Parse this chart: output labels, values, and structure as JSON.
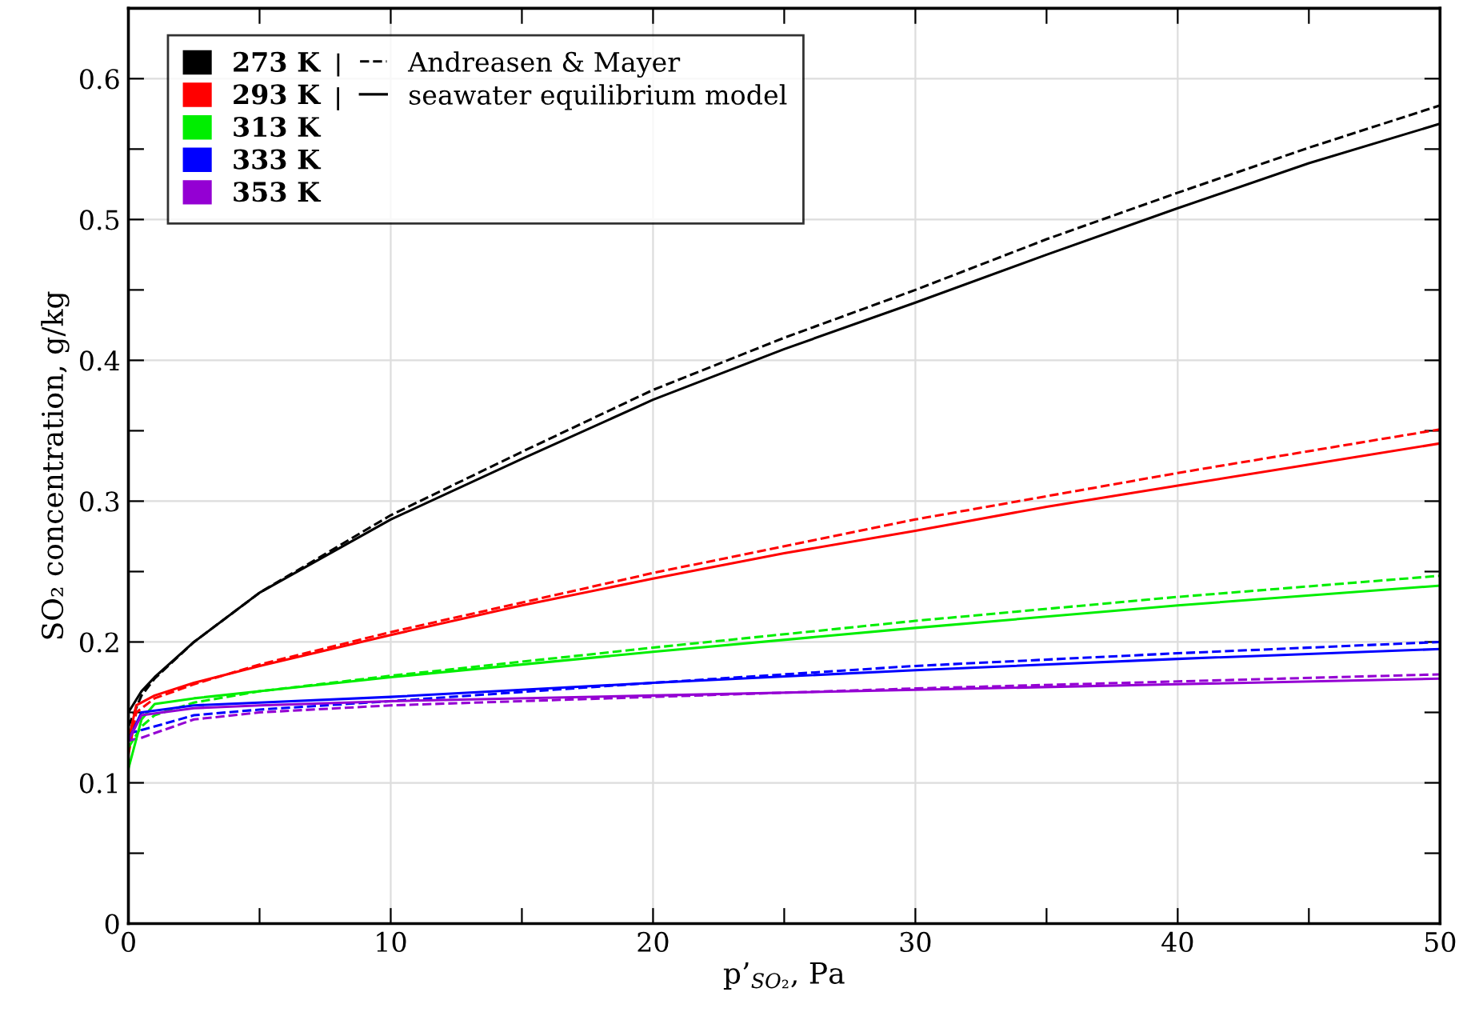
{
  "chart_data": {
    "type": "line",
    "xlabel": "p’$_{SO₂}$, Pa",
    "ylabel": "SO₂ concentration, g/kg",
    "xlim": [
      0,
      50
    ],
    "ylim": [
      0,
      0.65
    ],
    "xticks": [
      0,
      {
        "value": 5,
        "label": null
      },
      10,
      {
        "value": 15,
        "label": null
      },
      20,
      {
        "value": 25,
        "label": null
      },
      30,
      {
        "value": 35,
        "label": null
      },
      40,
      {
        "value": 45,
        "label": null
      },
      50
    ],
    "yticks": [
      0,
      {
        "value": 0.05,
        "label": null
      },
      0.1,
      {
        "value": 0.15,
        "label": null
      },
      0.2,
      {
        "value": 0.25,
        "label": null
      },
      0.3,
      {
        "value": 0.35,
        "label": null
      },
      0.4,
      {
        "value": 0.45,
        "label": null
      },
      0.5,
      {
        "value": 0.55,
        "label": null
      },
      0.6
    ],
    "grid": true,
    "legend": "top left",
    "marker": "none",
    "annotations": [
      "Andreasen & Mayer",
      "seawater equilibrium model"
    ],
    "series": [
      {
        "color": "#000000",
        "line_style": "dashed",
        "x": [
          0,
          0.5,
          1,
          2.5,
          5,
          10,
          15,
          20,
          25,
          30,
          35,
          40,
          45,
          50
        ],
        "values": [
          0.14,
          0.162,
          0.174,
          0.2,
          0.235,
          0.29,
          0.335,
          0.379,
          0.416,
          0.45,
          0.486,
          0.519,
          0.551,
          0.581
        ]
      },
      {
        "color": "#ff0000",
        "line_style": "dashed",
        "x": [
          0,
          0.3,
          1,
          2.5,
          5,
          10,
          20,
          30,
          40,
          50
        ],
        "values": [
          0.12,
          0.15,
          0.16,
          0.17,
          0.184,
          0.207,
          0.249,
          0.287,
          0.32,
          0.351
        ]
      },
      {
        "color": "#00ee00",
        "line_style": "dashed",
        "x": [
          0,
          0.5,
          1,
          2.5,
          5,
          10,
          20,
          30,
          40,
          50
        ],
        "values": [
          0.125,
          0.14,
          0.148,
          0.157,
          0.165,
          0.176,
          0.196,
          0.215,
          0.232,
          0.247
        ]
      },
      {
        "color": "#0000ff",
        "line_style": "dashed",
        "x": [
          0,
          1,
          2.5,
          5,
          10,
          20,
          30,
          40,
          50
        ],
        "values": [
          0.135,
          0.14,
          0.148,
          0.152,
          0.158,
          0.171,
          0.183,
          0.192,
          0.2
        ]
      },
      {
        "color": "#9400d3",
        "line_style": "dashed",
        "x": [
          0,
          0.5,
          2.5,
          5,
          10,
          20,
          30,
          40,
          50
        ],
        "values": [
          0.13,
          0.132,
          0.145,
          0.15,
          0.155,
          0.161,
          0.167,
          0.172,
          0.177
        ]
      },
      {
        "name": "273 K",
        "color": "#000000",
        "line_style": "solid",
        "x": [
          0,
          0.5,
          1,
          2.5,
          5,
          10,
          15,
          20,
          25,
          30,
          35,
          40,
          45,
          50
        ],
        "values": [
          0.15,
          0.165,
          0.175,
          0.2,
          0.235,
          0.287,
          0.33,
          0.372,
          0.408,
          0.441,
          0.475,
          0.508,
          0.54,
          0.568
        ]
      },
      {
        "name": "293 K",
        "color": "#ff0000",
        "line_style": "solid",
        "x": [
          0,
          0.3,
          1,
          2.5,
          5,
          10,
          15,
          20,
          25,
          30,
          35,
          40,
          45,
          50
        ],
        "values": [
          0.13,
          0.155,
          0.162,
          0.171,
          0.183,
          0.205,
          0.226,
          0.245,
          0.263,
          0.279,
          0.296,
          0.311,
          0.326,
          0.341
        ]
      },
      {
        "name": "313 K",
        "color": "#00ee00",
        "line_style": "solid",
        "x": [
          0,
          0.5,
          1,
          2.5,
          5,
          10,
          20,
          30,
          40,
          50
        ],
        "values": [
          0.11,
          0.145,
          0.156,
          0.16,
          0.165,
          0.175,
          0.193,
          0.21,
          0.226,
          0.24
        ]
      },
      {
        "name": "333 K",
        "color": "#0000ff",
        "line_style": "solid",
        "x": [
          0,
          0.5,
          2.5,
          5,
          10,
          20,
          30,
          40,
          50
        ],
        "values": [
          0.13,
          0.15,
          0.155,
          0.157,
          0.161,
          0.171,
          0.18,
          0.188,
          0.195
        ]
      },
      {
        "name": "353 K",
        "color": "#9400d3",
        "line_style": "solid",
        "x": [
          0,
          0.5,
          2.5,
          5,
          10,
          20,
          30,
          40,
          50
        ],
        "values": [
          0.13,
          0.148,
          0.153,
          0.155,
          0.158,
          0.162,
          0.166,
          0.17,
          0.174
        ]
      }
    ]
  }
}
